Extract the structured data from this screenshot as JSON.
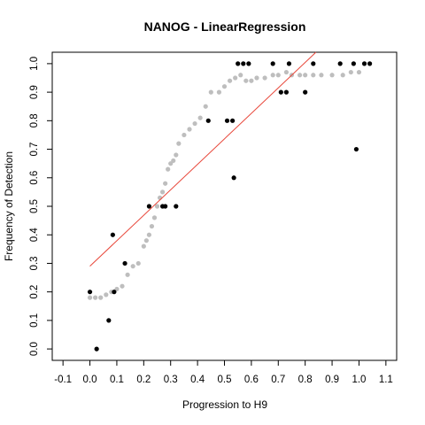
{
  "chart_data": {
    "type": "scatter",
    "title": "NANOG - LinearRegression",
    "xlabel": "Progression to H9",
    "ylabel": "Frequency of Detection",
    "xlim": [
      -0.14,
      1.14
    ],
    "ylim": [
      -0.04,
      1.04
    ],
    "x_ticks": [
      "-0.1",
      "0.0",
      "0.1",
      "0.2",
      "0.3",
      "0.4",
      "0.5",
      "0.6",
      "0.7",
      "0.8",
      "0.9",
      "1.0",
      "1.1"
    ],
    "y_ticks": [
      "0.0",
      "0.1",
      "0.2",
      "0.3",
      "0.4",
      "0.5",
      "0.6",
      "0.7",
      "0.8",
      "0.9",
      "1.0"
    ],
    "grid": false,
    "colors": {
      "observed": "#000000",
      "smoothed": "#bebebe",
      "fit": "#e8473a"
    },
    "smoothed_series": {
      "x": [
        0.0,
        0.02,
        0.04,
        0.06,
        0.08,
        0.1,
        0.12,
        0.14,
        0.16,
        0.18,
        0.2,
        0.21,
        0.22,
        0.23,
        0.24,
        0.25,
        0.26,
        0.27,
        0.28,
        0.29,
        0.3,
        0.31,
        0.32,
        0.33,
        0.35,
        0.37,
        0.39,
        0.41,
        0.43,
        0.45,
        0.48,
        0.5,
        0.52,
        0.54,
        0.56,
        0.58,
        0.6,
        0.62,
        0.65,
        0.68,
        0.7,
        0.73,
        0.75,
        0.78,
        0.8,
        0.83,
        0.86,
        0.9,
        0.94,
        0.97,
        1.0
      ],
      "y": [
        0.18,
        0.18,
        0.18,
        0.19,
        0.2,
        0.21,
        0.22,
        0.26,
        0.29,
        0.3,
        0.36,
        0.38,
        0.4,
        0.43,
        0.46,
        0.5,
        0.53,
        0.55,
        0.58,
        0.63,
        0.65,
        0.66,
        0.68,
        0.72,
        0.75,
        0.77,
        0.79,
        0.81,
        0.85,
        0.9,
        0.9,
        0.92,
        0.94,
        0.95,
        0.96,
        0.94,
        0.94,
        0.95,
        0.95,
        0.96,
        0.96,
        0.97,
        0.96,
        0.96,
        0.96,
        0.96,
        0.96,
        0.96,
        0.96,
        0.97,
        0.97
      ]
    },
    "observed_series": {
      "x": [
        0.0,
        0.025,
        0.07,
        0.085,
        0.09,
        0.13,
        0.22,
        0.27,
        0.28,
        0.32,
        0.44,
        0.51,
        0.53,
        0.535,
        0.55,
        0.57,
        0.59,
        0.68,
        0.71,
        0.73,
        0.74,
        0.8,
        0.83,
        0.93,
        0.98,
        0.99,
        1.02,
        1.04
      ],
      "y": [
        0.2,
        0.0,
        0.1,
        0.4,
        0.2,
        0.3,
        0.5,
        0.5,
        0.5,
        0.5,
        0.8,
        0.8,
        0.8,
        0.6,
        1.0,
        1.0,
        1.0,
        1.0,
        0.9,
        0.9,
        1.0,
        0.9,
        1.0,
        1.0,
        1.0,
        0.7,
        1.0,
        1.0
      ]
    },
    "fit_line": {
      "x": [
        0.0,
        0.84
      ],
      "y": [
        0.29,
        1.04
      ]
    }
  }
}
